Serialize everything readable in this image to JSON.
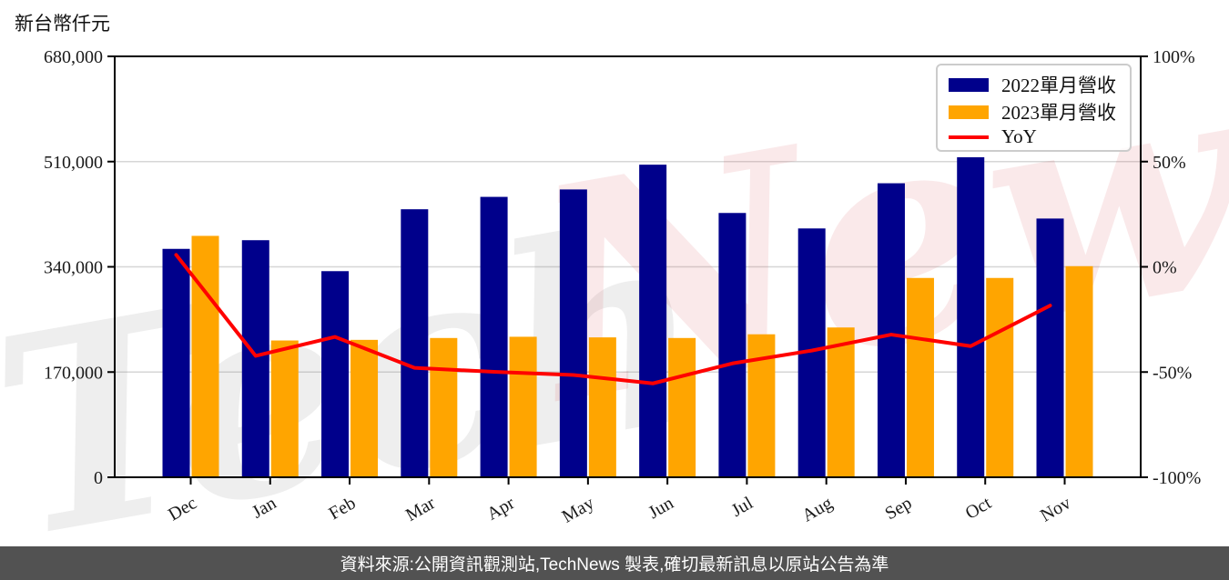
{
  "chart_data": {
    "type": "bar+line",
    "unit_label": "新台幣仟元",
    "categories": [
      "Dec",
      "Jan",
      "Feb",
      "Mar",
      "Apr",
      "May",
      "Jun",
      "Jul",
      "Aug",
      "Sep",
      "Oct",
      "Nov"
    ],
    "series": [
      {
        "name": "2022單月營收",
        "type": "bar",
        "axis": "left",
        "color": "#00008B",
        "values": [
          369000,
          383000,
          333000,
          433000,
          453000,
          465000,
          505000,
          427000,
          402000,
          475000,
          517000,
          418000
        ]
      },
      {
        "name": "2023單月營收",
        "type": "bar",
        "axis": "left",
        "color": "#FFA500",
        "values": [
          390000,
          221000,
          222000,
          225000,
          227000,
          226000,
          225000,
          231000,
          242000,
          322000,
          322000,
          341000
        ]
      },
      {
        "name": "YoY",
        "type": "line",
        "axis": "right",
        "color": "#FF0000",
        "unit": "%",
        "values": [
          5.7,
          -42.3,
          -33.3,
          -48.0,
          -49.9,
          -51.4,
          -55.4,
          -45.9,
          -39.8,
          -32.2,
          -37.7,
          -18.4
        ]
      }
    ],
    "left_axis": {
      "min": 0,
      "max": 680000,
      "tick_values": [
        0,
        170000,
        340000,
        510000,
        680000
      ],
      "tick_labels": [
        "0",
        "170,000",
        "340,000",
        "510,000",
        "680,000"
      ]
    },
    "right_axis": {
      "min": -100,
      "max": 100,
      "tick_values": [
        -100,
        -50,
        0,
        50,
        100
      ],
      "tick_labels": [
        "-100%",
        "-50%",
        "0%",
        "50%",
        "100%"
      ]
    },
    "legend_position": "top-right",
    "grid": "horizontal"
  },
  "watermark": {
    "part1": "Tech",
    "part2": "News"
  },
  "footer": {
    "text": "資料來源:公開資訊觀測站,TechNews 製表,確切最新訊息以原站公告為準"
  },
  "colors": {
    "bar_2022": "#00008B",
    "bar_2023": "#FFA500",
    "yoy_line": "#FF0000",
    "grid_line": "#d6d6d6",
    "axis_line": "#000000",
    "footer_bg": "#525252",
    "watermark_gray": "rgba(120,120,120,0.13)",
    "watermark_pink": "rgba(217,83,96,0.13)"
  }
}
